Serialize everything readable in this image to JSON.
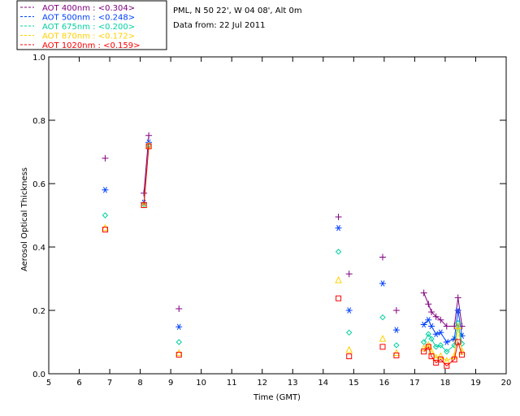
{
  "chart_data": {
    "type": "scatter",
    "title_lines": [
      "PML, N 50 22', W 04 08', Alt 0m",
      "Data from: 22 Jul 2011"
    ],
    "xlabel": "Time (GMT)",
    "ylabel": "Aerosol Optical Thickness",
    "xlim": [
      5,
      20
    ],
    "ylim": [
      0,
      1
    ],
    "xticks": [
      5,
      6,
      7,
      8,
      9,
      10,
      11,
      12,
      13,
      14,
      15,
      16,
      17,
      18,
      19,
      20
    ],
    "yticks": [
      0.0,
      0.2,
      0.4,
      0.6,
      0.8,
      1.0
    ],
    "ytick_labels": [
      "0.0",
      "0.2",
      "0.4",
      "0.6",
      "0.8",
      "1.0"
    ],
    "series": [
      {
        "name": "AOT  400nm",
        "legend_label": "AOT  400nm : <0.304>",
        "color": "#800080",
        "marker": "plus",
        "x": [
          6.85,
          8.12,
          8.28,
          9.27,
          14.5,
          14.85,
          15.95,
          16.4,
          17.3,
          17.45,
          17.55,
          17.7,
          17.85,
          18.05,
          18.3,
          18.42,
          18.55
        ],
        "y": [
          0.68,
          0.57,
          0.752,
          0.205,
          0.495,
          0.315,
          0.368,
          0.2,
          0.255,
          0.22,
          0.195,
          0.18,
          0.17,
          0.15,
          0.15,
          0.24,
          0.15
        ],
        "lines": [
          [
            1,
            2
          ],
          [
            8,
            9,
            10,
            11,
            12,
            13,
            14,
            15,
            16
          ]
        ]
      },
      {
        "name": "AOT  500nm",
        "legend_label": "AOT  500nm : <0.248>",
        "color": "#0040ff",
        "marker": "asterisk",
        "x": [
          6.85,
          8.12,
          8.28,
          9.27,
          14.5,
          14.85,
          15.95,
          16.4,
          17.3,
          17.45,
          17.55,
          17.7,
          17.85,
          18.05,
          18.3,
          18.42,
          18.55
        ],
        "y": [
          0.58,
          0.54,
          0.73,
          0.148,
          0.46,
          0.2,
          0.285,
          0.138,
          0.155,
          0.17,
          0.15,
          0.125,
          0.13,
          0.1,
          0.11,
          0.2,
          0.12
        ],
        "lines": [
          [
            1,
            2
          ],
          [
            8,
            9,
            10,
            11,
            12,
            13,
            14,
            15,
            16
          ]
        ]
      },
      {
        "name": "AOT  675nm",
        "legend_label": "AOT  675nm : <0.200>",
        "color": "#00d0a0",
        "marker": "diamond",
        "x": [
          6.85,
          8.12,
          8.28,
          9.27,
          14.5,
          14.85,
          15.95,
          16.4,
          17.3,
          17.45,
          17.55,
          17.7,
          17.85,
          18.05,
          18.3,
          18.42,
          18.55
        ],
        "y": [
          0.5,
          0.535,
          0.722,
          0.1,
          0.385,
          0.13,
          0.178,
          0.09,
          0.1,
          0.125,
          0.11,
          0.085,
          0.09,
          0.07,
          0.09,
          0.16,
          0.095
        ],
        "lines": [
          [
            1,
            2
          ],
          [
            8,
            9,
            10,
            11,
            12,
            13,
            14,
            15,
            16
          ]
        ]
      },
      {
        "name": "AOT  870nm",
        "legend_label": "AOT  870nm : <0.172>",
        "color": "#ffd000",
        "marker": "triangle",
        "x": [
          6.85,
          8.12,
          8.28,
          9.27,
          14.5,
          14.85,
          15.95,
          16.4,
          17.3,
          17.45,
          17.55,
          17.7,
          17.85,
          18.05,
          18.3,
          18.42,
          18.55
        ],
        "y": [
          0.46,
          0.532,
          0.72,
          0.065,
          0.295,
          0.075,
          0.11,
          0.065,
          0.08,
          0.09,
          0.07,
          0.05,
          0.055,
          0.04,
          0.055,
          0.15,
          0.07
        ],
        "lines": [
          [
            1,
            2
          ],
          [
            8,
            9,
            10,
            11,
            12,
            13,
            14,
            15,
            16
          ]
        ]
      },
      {
        "name": "AOT 1020nm",
        "legend_label": "AOT 1020nm : <0.159>",
        "color": "#ff0000",
        "marker": "square",
        "x": [
          6.85,
          8.12,
          8.28,
          9.27,
          14.5,
          14.85,
          15.95,
          16.4,
          17.3,
          17.45,
          17.55,
          17.7,
          17.85,
          18.05,
          18.3,
          18.42,
          18.55
        ],
        "y": [
          0.455,
          0.532,
          0.718,
          0.06,
          0.238,
          0.055,
          0.085,
          0.058,
          0.07,
          0.085,
          0.055,
          0.035,
          0.045,
          0.025,
          0.045,
          0.1,
          0.06
        ],
        "lines": [
          [
            1,
            2
          ],
          [
            8,
            9,
            10,
            11,
            12,
            13,
            14,
            15,
            16
          ]
        ]
      }
    ]
  }
}
